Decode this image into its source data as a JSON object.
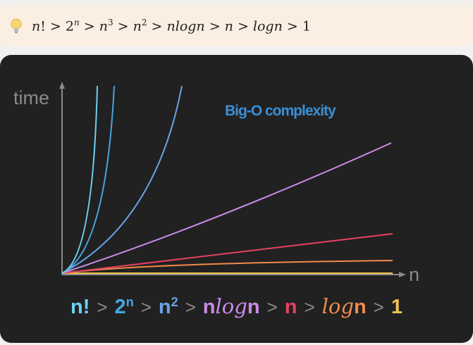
{
  "callout": {
    "icon": "lightbulb-icon",
    "formula": [
      {
        "text": "n",
        "italic": true
      },
      {
        "text": "! > 2"
      },
      {
        "sup": "n",
        "italic": true
      },
      {
        "text": " > "
      },
      {
        "text": "n",
        "italic": true
      },
      {
        "sup": "3"
      },
      {
        "text": " > "
      },
      {
        "text": "n",
        "italic": true
      },
      {
        "sup": "2"
      },
      {
        "text": " > "
      },
      {
        "text": "nlogn",
        "italic": true
      },
      {
        "text": " > "
      },
      {
        "text": "n",
        "italic": true
      },
      {
        "text": " > "
      },
      {
        "text": "logn",
        "italic": true
      },
      {
        "text": " > 1"
      }
    ]
  },
  "chart": {
    "title": "Big-O complexity",
    "ylabel": "time",
    "xlabel": "n",
    "colors": {
      "title": "#3b8fd4",
      "axis": "#8a8a8a",
      "factorial": "#6fd0f0",
      "exponential": "#45a8e0",
      "quadratic": "#6aa3e8",
      "nlogn": "#c98be8",
      "linear": "#e8415f",
      "logn": "#f08a4b",
      "constant": "#f2c34e"
    }
  },
  "bottom_order": {
    "items": [
      {
        "key": "factorial",
        "main": "n!",
        "color": "#6fd0f0"
      },
      {
        "key": "exponential",
        "main": "2",
        "sup": "n",
        "color": "#45a8e0"
      },
      {
        "key": "quadratic",
        "main": "n",
        "sup": "2",
        "color": "#6aa3e8"
      },
      {
        "key": "nlogn",
        "main": "n",
        "log": "log",
        "tail": "n",
        "color": "#c98be8"
      },
      {
        "key": "linear",
        "main": "n",
        "color": "#e8415f"
      },
      {
        "key": "logn",
        "log": "log",
        "tail": "n",
        "color": "#f08a4b"
      },
      {
        "key": "constant",
        "main": "1",
        "color": "#f2c34e"
      }
    ],
    "separator": ">"
  }
}
